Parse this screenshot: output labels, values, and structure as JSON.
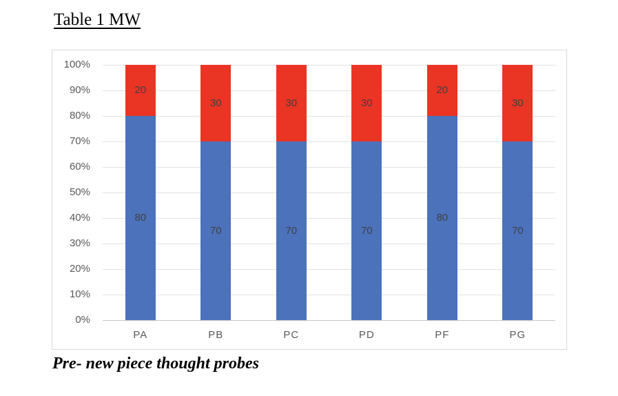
{
  "title": "Table 1 MW",
  "caption": "Pre- new piece thought probes",
  "chart_data": {
    "type": "bar",
    "stacked": true,
    "orientation": "vertical",
    "title": "Table 1 MW",
    "caption": "Pre- new piece thought probes",
    "categories": [
      "PA",
      "PB",
      "PC",
      "PD",
      "PF",
      "PG"
    ],
    "series": [
      {
        "color": "#4C72BC",
        "values": [
          80,
          70,
          70,
          70,
          80,
          70
        ]
      },
      {
        "color": "#EA3424",
        "values": [
          20,
          30,
          30,
          30,
          20,
          30
        ]
      }
    ],
    "y_ticks": [
      "0%",
      "10%",
      "20%",
      "30%",
      "40%",
      "50%",
      "60%",
      "70%",
      "80%",
      "90%",
      "100%"
    ],
    "ylim": [
      0,
      100
    ],
    "grid": true,
    "legend": "none",
    "data_labels": true,
    "colors": {
      "grid": "#e2e2e2",
      "axis_line": "#c6c6c6",
      "axis_text": "#595959",
      "data_label_text": "#404040",
      "frame_border": "#d9d9d9"
    }
  }
}
